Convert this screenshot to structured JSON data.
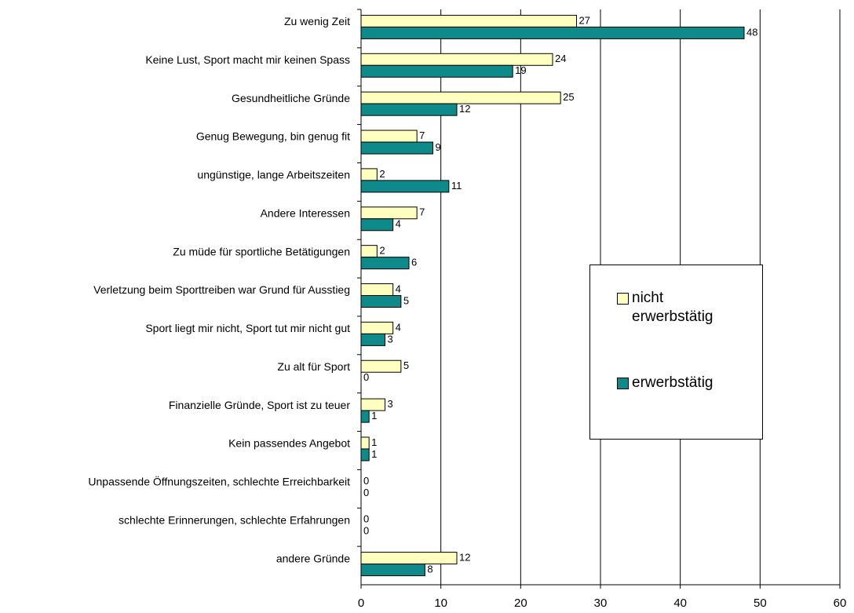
{
  "chart_data": {
    "type": "hbar",
    "categories": [
      "Zu wenig Zeit",
      "Keine Lust, Sport macht mir keinen Spass",
      "Gesundheitliche Gründe",
      "Genug Bewegung, bin genug fit",
      "ungünstige, lange Arbeitszeiten",
      "Andere Interessen",
      "Zu müde für sportliche Betätigungen",
      "Verletzung beim Sporttreiben war Grund für Ausstieg",
      "Sport liegt mir nicht, Sport tut mir nicht gut",
      "Zu alt für Sport",
      "Finanzielle Gründe, Sport ist zu teuer",
      "Kein passendes Angebot",
      "Unpassende Öffnungszeiten, schlechte Erreichbarkeit",
      "schlechte Erinnerungen, schlechte Erfahrungen",
      "andere Gründe"
    ],
    "series": [
      {
        "name": "nicht erwerbstätig",
        "color": "#ffffc0",
        "values": [
          27,
          24,
          25,
          7,
          2,
          7,
          2,
          4,
          4,
          5,
          3,
          1,
          0,
          0,
          12
        ]
      },
      {
        "name": "erwerbstätig",
        "color": "#0f8a8a",
        "values": [
          48,
          19,
          12,
          9,
          11,
          4,
          6,
          5,
          3,
          0,
          1,
          1,
          0,
          0,
          8
        ]
      }
    ],
    "xlim": [
      0,
      60
    ],
    "xticks": [
      0,
      10,
      20,
      30,
      40,
      50,
      60
    ],
    "grid": true
  }
}
